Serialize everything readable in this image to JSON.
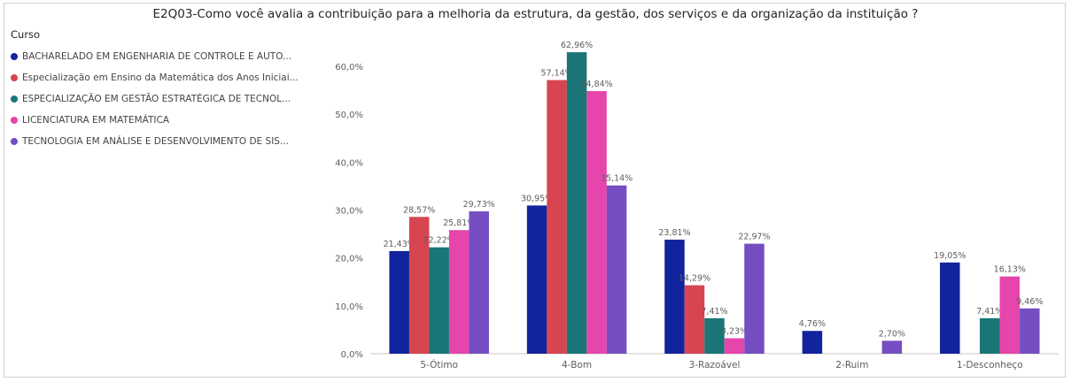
{
  "chart_data": {
    "type": "bar",
    "title": "E2Q03-Como você avalia a contribuição para a melhoria da estrutura, da gestão, dos serviços e da organização da instituição ?",
    "legend_title": "Curso",
    "legend_position": "top-left",
    "categories": [
      "5-Ótimo",
      "4-Bom",
      "3-Razoável",
      "2-Ruim",
      "1-Desconheço"
    ],
    "ylim": [
      0,
      65
    ],
    "yticks": [
      0,
      10,
      20,
      30,
      40,
      50,
      60
    ],
    "ytick_labels": [
      "0,0%",
      "10,0%",
      "20,0%",
      "30,0%",
      "40,0%",
      "50,0%",
      "60,0%"
    ],
    "grid": false,
    "series": [
      {
        "name": "BACHARELADO EM ENGENHARIA DE CONTROLE E AUTO...",
        "color": "#12239E",
        "values": [
          21.43,
          30.95,
          23.81,
          4.76,
          19.05
        ],
        "labels": [
          "21,43%",
          "30,95%",
          "23,81%",
          "4,76%",
          "19,05%"
        ]
      },
      {
        "name": "Especialização em Ensino da Matemática dos Anos Iniciai...",
        "color": "#D64550",
        "values": [
          28.57,
          57.14,
          14.29,
          null,
          null
        ],
        "labels": [
          "28,57%",
          "57,14%",
          "14,29%",
          "",
          ""
        ]
      },
      {
        "name": "ESPECIALIZAÇÃO EM GESTÃO ESTRATÉGICA DE TECNOL...",
        "color": "#1A7676",
        "values": [
          22.22,
          62.96,
          7.41,
          null,
          7.41
        ],
        "labels": [
          "22,22%",
          "62,96%",
          "7,41%",
          "",
          "7,41%"
        ]
      },
      {
        "name": "LICENCIATURA EM MATEMÁTICA",
        "color": "#E645AB",
        "values": [
          25.81,
          54.84,
          3.23,
          null,
          16.13
        ],
        "labels": [
          "25,81%",
          "54,84%",
          "3,23%",
          "",
          "16,13%"
        ]
      },
      {
        "name": "TECNOLOGIA EM ANÁLISE E DESENVOLVIMENTO DE SIS...",
        "color": "#744EC2",
        "values": [
          29.73,
          35.14,
          22.97,
          2.7,
          9.46
        ],
        "labels": [
          "29,73%",
          "35,14%",
          "22,97%",
          "2,70%",
          "9,46%"
        ]
      }
    ]
  }
}
